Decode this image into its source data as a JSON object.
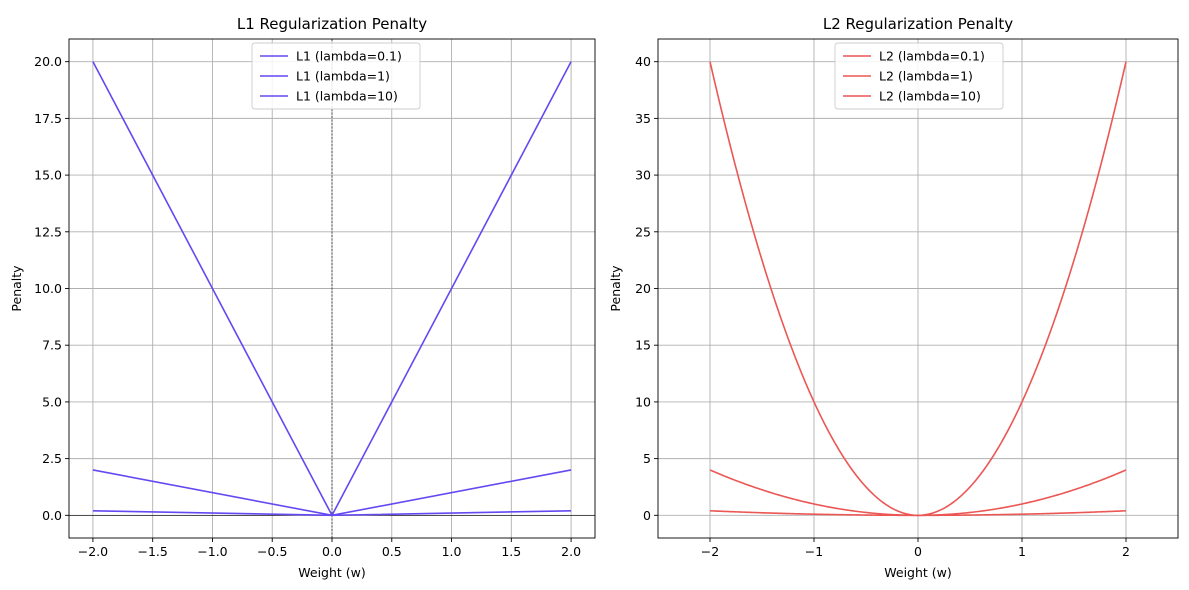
{
  "colors": {
    "l1": "#6349f2",
    "l2": "#eb5754",
    "grid": "#b0b0b0"
  },
  "chart_data": [
    {
      "type": "line",
      "title": "L1 Regularization Penalty",
      "xlabel": "Weight (w)",
      "ylabel": "Penalty",
      "xlim": [
        -2.2,
        2.2
      ],
      "ylim": [
        -1.0,
        21.0
      ],
      "xticks": [
        -2.0,
        -1.5,
        -1.0,
        -0.5,
        0.0,
        0.5,
        1.0,
        1.5,
        2.0
      ],
      "xtick_labels": [
        "−2.0",
        "−1.5",
        "−1.0",
        "−0.5",
        "0.0",
        "0.5",
        "1.0",
        "1.5",
        "2.0"
      ],
      "yticks": [
        0.0,
        2.5,
        5.0,
        7.5,
        10.0,
        12.5,
        15.0,
        17.5,
        20.0
      ],
      "ytick_labels": [
        "0.0",
        "2.5",
        "5.0",
        "7.5",
        "10.0",
        "12.5",
        "15.0",
        "17.5",
        "20.0"
      ],
      "grid": true,
      "legend": "upper center",
      "reference_lines": {
        "horizontal_y": 0,
        "vertical_dashed_x": 0
      },
      "color_key": "l1",
      "series": [
        {
          "name": "L1 (lambda=0.1)",
          "lambda": 0.1,
          "x": [
            -2,
            0,
            2
          ],
          "y": [
            0.2,
            0.0,
            0.2
          ]
        },
        {
          "name": "L1 (lambda=1)",
          "lambda": 1,
          "x": [
            -2,
            0,
            2
          ],
          "y": [
            2.0,
            0.0,
            2.0
          ]
        },
        {
          "name": "L1 (lambda=10)",
          "lambda": 10,
          "x": [
            -2,
            0,
            2
          ],
          "y": [
            20.0,
            0.0,
            20.0
          ]
        }
      ]
    },
    {
      "type": "line",
      "title": "L2 Regularization Penalty",
      "xlabel": "Weight (w)",
      "ylabel": "Penalty",
      "xlim": [
        -2.5,
        2.5
      ],
      "ylim": [
        -2.0,
        42.0
      ],
      "xticks": [
        -2,
        -1,
        0,
        1,
        2
      ],
      "xtick_labels": [
        "−2",
        "−1",
        "0",
        "1",
        "2"
      ],
      "yticks": [
        0,
        5,
        10,
        15,
        20,
        25,
        30,
        35,
        40
      ],
      "ytick_labels": [
        "0",
        "5",
        "10",
        "15",
        "20",
        "25",
        "30",
        "35",
        "40"
      ],
      "grid": true,
      "legend": "upper center",
      "color_key": "l2",
      "series": [
        {
          "name": "L2 (lambda=0.1)",
          "lambda": 0.1,
          "x": [
            -2,
            -1.5,
            -1,
            -0.5,
            0,
            0.5,
            1,
            1.5,
            2
          ],
          "y": [
            0.4,
            0.225,
            0.1,
            0.025,
            0.0,
            0.025,
            0.1,
            0.225,
            0.4
          ]
        },
        {
          "name": "L2 (lambda=1)",
          "lambda": 1,
          "x": [
            -2,
            -1.5,
            -1,
            -0.5,
            0,
            0.5,
            1,
            1.5,
            2
          ],
          "y": [
            4.0,
            2.25,
            1.0,
            0.25,
            0.0,
            0.25,
            1.0,
            2.25,
            4.0
          ]
        },
        {
          "name": "L2 (lambda=10)",
          "lambda": 10,
          "x": [
            -2,
            -1.5,
            -1,
            -0.5,
            0,
            0.5,
            1,
            1.5,
            2
          ],
          "y": [
            40.0,
            22.5,
            10.0,
            2.5,
            0.0,
            2.5,
            10.0,
            22.5,
            40.0
          ]
        }
      ]
    }
  ]
}
